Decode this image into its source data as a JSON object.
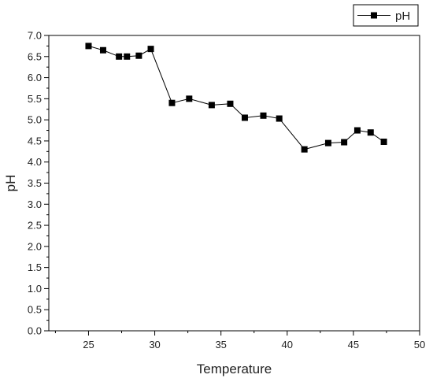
{
  "chart_data": {
    "type": "line",
    "xlabel": "Temperature",
    "ylabel": "pH",
    "xlim": [
      22,
      50
    ],
    "ylim": [
      0,
      7
    ],
    "xticks": [
      25,
      30,
      35,
      40,
      45,
      50
    ],
    "yticks": [
      0.0,
      0.5,
      1.0,
      1.5,
      2.0,
      2.5,
      3.0,
      3.5,
      4.0,
      4.5,
      5.0,
      5.5,
      6.0,
      6.5,
      7.0
    ],
    "ytick_labels": [
      "0.0",
      "0.5",
      "1.0",
      "1.5",
      "2.0",
      "2.5",
      "3.0",
      "3.5",
      "4.0",
      "4.5",
      "5.0",
      "5.5",
      "6.0",
      "6.5",
      "7.0"
    ],
    "grid": false,
    "legend": "top-right",
    "series": [
      {
        "name": "pH",
        "color": "#000000",
        "marker": "square",
        "x": [
          25.0,
          26.1,
          27.3,
          27.9,
          28.8,
          29.7,
          31.3,
          32.6,
          34.3,
          35.7,
          36.8,
          38.2,
          39.4,
          41.3,
          43.1,
          44.3,
          45.3,
          46.3,
          47.3
        ],
        "y": [
          6.75,
          6.65,
          6.5,
          6.5,
          6.52,
          6.68,
          5.4,
          5.5,
          5.35,
          5.38,
          5.05,
          5.1,
          5.03,
          4.3,
          4.45,
          4.47,
          4.75,
          4.7,
          4.48
        ]
      }
    ]
  }
}
